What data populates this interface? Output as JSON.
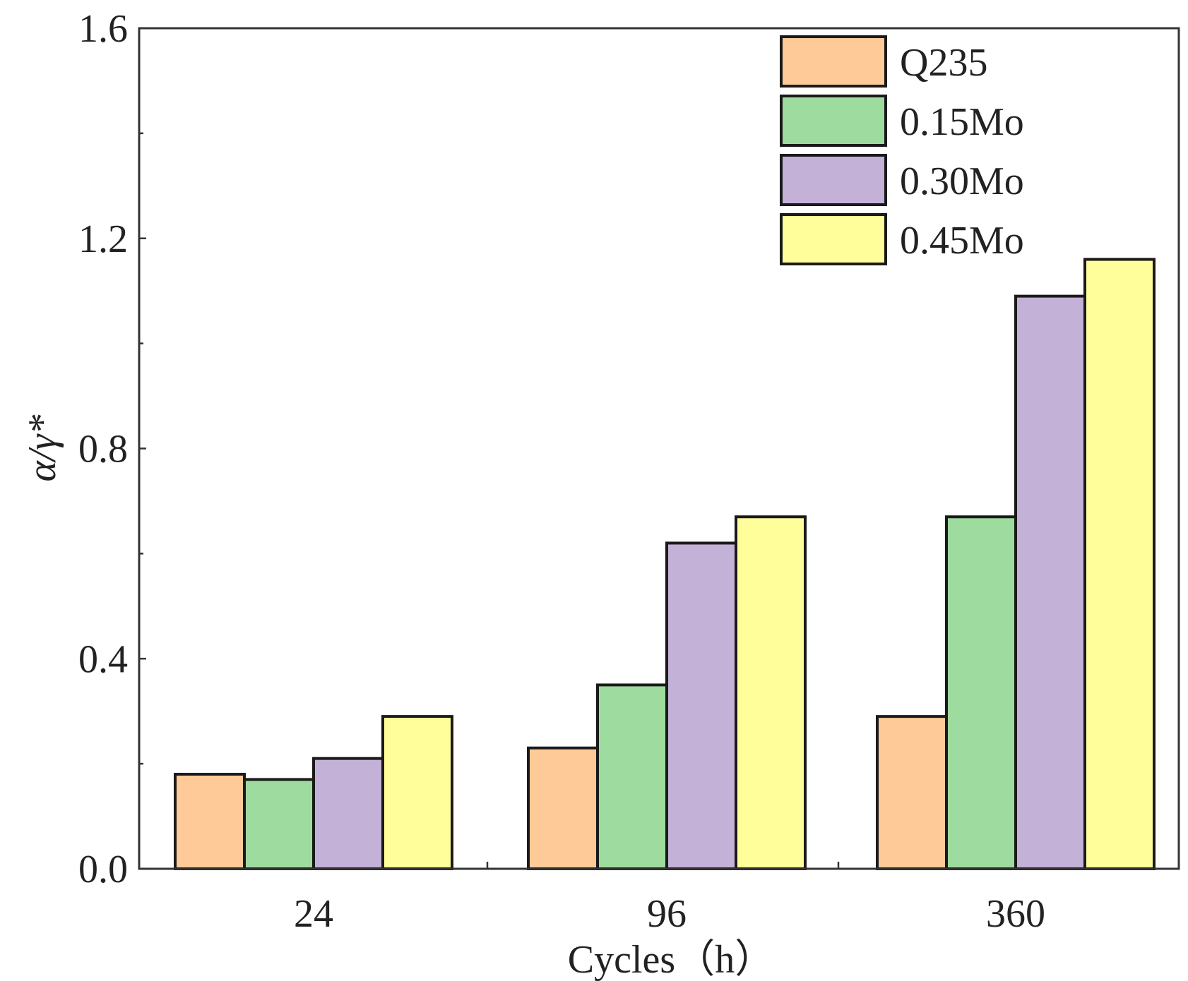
{
  "chart_data": {
    "type": "bar",
    "title": "",
    "xlabel": "Cycles（h）",
    "ylabel": "α/γ*",
    "ylim": [
      0.0,
      1.6
    ],
    "yticks": [
      0.0,
      0.4,
      0.8,
      1.2,
      1.6
    ],
    "ytick_labels": [
      "0.0",
      "0.4",
      "0.8",
      "1.2",
      "1.6"
    ],
    "categories": [
      "24",
      "96",
      "360"
    ],
    "series": [
      {
        "name": "Q235",
        "color": "#FDCA98",
        "values": [
          0.18,
          0.23,
          0.29
        ]
      },
      {
        "name": "0.15Mo",
        "color": "#9EDB9E",
        "values": [
          0.17,
          0.35,
          0.67
        ]
      },
      {
        "name": "0.30Mo",
        "color": "#C3B1D8",
        "values": [
          0.21,
          0.62,
          1.09
        ]
      },
      {
        "name": "0.45Mo",
        "color": "#FFFE9A",
        "values": [
          0.29,
          0.67,
          1.16
        ]
      }
    ],
    "legend_position": "top-right",
    "grid": false
  }
}
